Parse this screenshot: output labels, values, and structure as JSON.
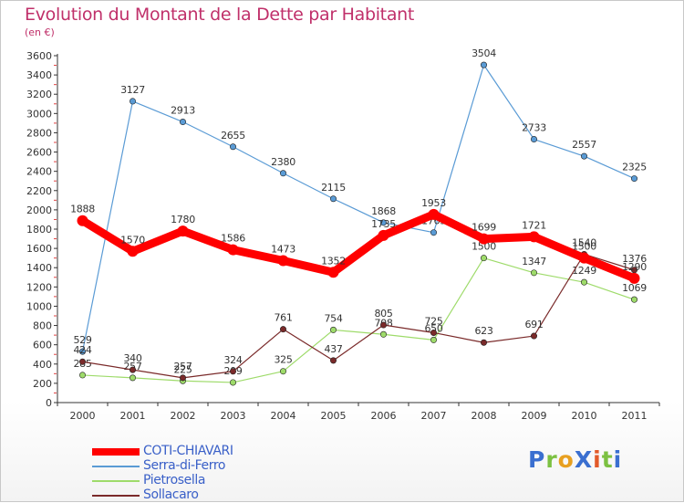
{
  "title": "Evolution du Montant de la Dette par Habitant",
  "subtitle": "(en €)",
  "logo_text": "ProXiti",
  "chart_data": {
    "type": "line",
    "categories": [
      "2000",
      "2001",
      "2002",
      "2003",
      "2004",
      "2005",
      "2006",
      "2007",
      "2008",
      "2009",
      "2010",
      "2011"
    ],
    "ylim": [
      0,
      3600
    ],
    "yticks": [
      0,
      200,
      400,
      600,
      800,
      1000,
      1200,
      1400,
      1600,
      1800,
      2000,
      2200,
      2400,
      2600,
      2800,
      3000,
      3200,
      3400,
      3600
    ],
    "grid": false,
    "legend_position": "bottom-left",
    "series": [
      {
        "name": "Serra-di-Ferro",
        "color": "#5a9bd5",
        "values": [
          529,
          3127,
          2913,
          2655,
          2380,
          2115,
          1868,
          1765,
          3504,
          2733,
          2557,
          2325
        ]
      },
      {
        "name": "Pietrosella",
        "color": "#9edb6a",
        "values": [
          285,
          257,
          225,
          209,
          325,
          754,
          708,
          650,
          1500,
          1347,
          1249,
          1069
        ]
      },
      {
        "name": "Sollacaro",
        "color": "#7a2a2a",
        "values": [
          424,
          340,
          257,
          324,
          761,
          437,
          805,
          725,
          623,
          691,
          1540,
          1376
        ]
      },
      {
        "name": "COTI-CHIAVARI",
        "color": "#ff0000",
        "values": [
          1888,
          1570,
          1780,
          1586,
          1473,
          1352,
          1735,
          1953,
          1699,
          1721,
          1500,
          1290
        ]
      }
    ]
  },
  "legend": [
    {
      "label": "COTI-CHIAVARI",
      "color": "#ff0000",
      "thick": true
    },
    {
      "label": "Serra-di-Ferro",
      "color": "#5a9bd5",
      "thick": false
    },
    {
      "label": "Pietrosella",
      "color": "#9edb6a",
      "thick": false
    },
    {
      "label": "Sollacaro",
      "color": "#7a2a2a",
      "thick": false
    }
  ]
}
